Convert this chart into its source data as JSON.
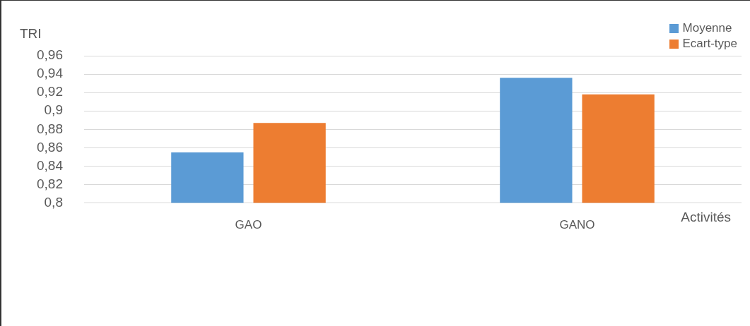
{
  "chart_data": {
    "type": "bar",
    "ylabel": "TRI",
    "xlabel": "Activités",
    "categories": [
      "GAO",
      "GANO"
    ],
    "series": [
      {
        "name": "Moyenne",
        "color": "#5b9bd5",
        "values": [
          0.855,
          0.936
        ]
      },
      {
        "name": "Ecart-type",
        "color": "#ed7d31",
        "values": [
          0.887,
          0.918
        ]
      }
    ],
    "ylim": [
      0.8,
      0.96
    ],
    "yticks": [
      {
        "value": 0.8,
        "label": "0,8"
      },
      {
        "value": 0.82,
        "label": "0,82"
      },
      {
        "value": 0.84,
        "label": "0,84"
      },
      {
        "value": 0.86,
        "label": "0,86"
      },
      {
        "value": 0.88,
        "label": "0,88"
      },
      {
        "value": 0.9,
        "label": "0,9"
      },
      {
        "value": 0.92,
        "label": "0,92"
      },
      {
        "value": 0.94,
        "label": "0,94"
      },
      {
        "value": 0.96,
        "label": "0,96"
      }
    ],
    "grid": "y",
    "legend": "top right"
  }
}
